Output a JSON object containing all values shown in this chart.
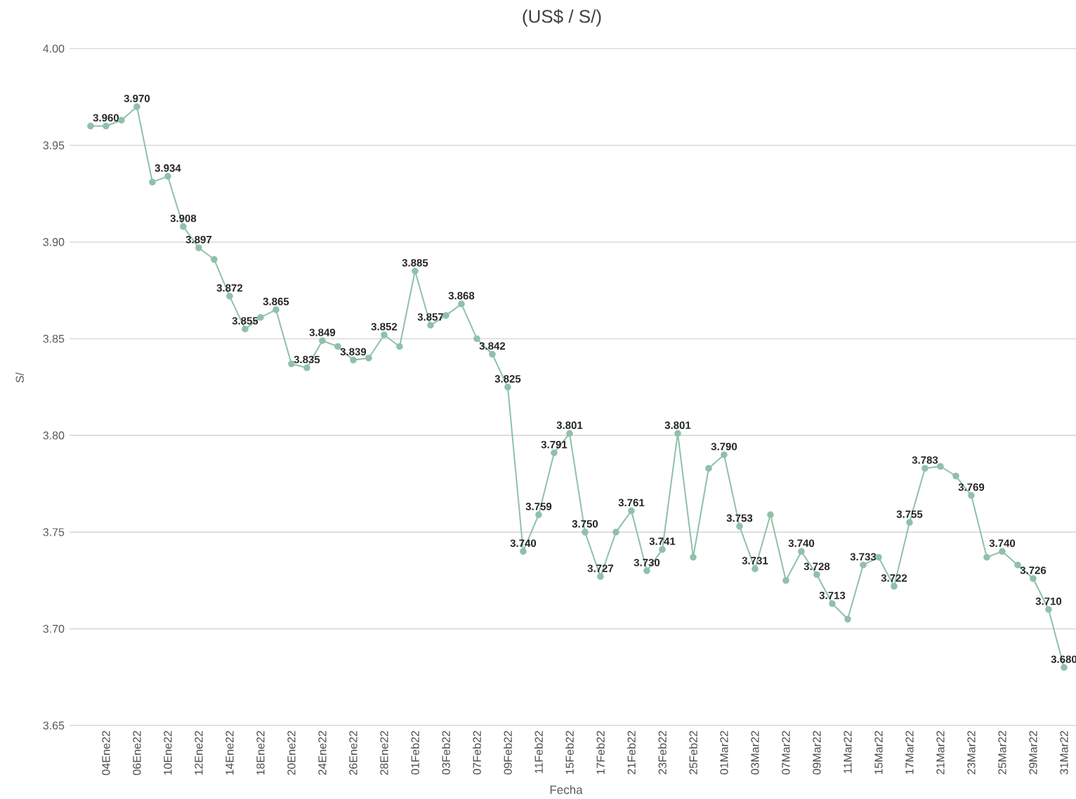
{
  "chart_data": {
    "type": "line",
    "title": "(US$ / S/)",
    "xlabel": "Fecha",
    "ylabel": "S/",
    "categories": [
      null,
      "04Ene22",
      null,
      "06Ene22",
      null,
      "10Ene22",
      null,
      "12Ene22",
      null,
      "14Ene22",
      null,
      "18Ene22",
      null,
      "20Ene22",
      null,
      "24Ene22",
      null,
      "26Ene22",
      null,
      "28Ene22",
      null,
      "01Feb22",
      null,
      "03Feb22",
      null,
      "07Feb22",
      null,
      "09Feb22",
      null,
      "11Feb22",
      null,
      "15Feb22",
      null,
      "17Feb22",
      null,
      "21Feb22",
      null,
      "23Feb22",
      null,
      "25Feb22",
      null,
      "01Mar22",
      null,
      "03Mar22",
      null,
      "07Mar22",
      null,
      "09Mar22",
      null,
      "11Mar22",
      null,
      "15Mar22",
      null,
      "17Mar22",
      null,
      "21Mar22",
      null,
      "23Mar22",
      null,
      "25Mar22",
      null,
      "29Mar22",
      null,
      "31Mar22"
    ],
    "series": [
      {
        "color": "#8fc1a9",
        "values": [
          3.96,
          3.96,
          3.963,
          3.97,
          3.931,
          3.934,
          3.908,
          3.897,
          3.891,
          3.872,
          3.855,
          3.861,
          3.865,
          3.837,
          3.835,
          3.849,
          3.846,
          3.839,
          3.84,
          3.852,
          3.846,
          3.885,
          3.857,
          3.862,
          3.868,
          3.85,
          3.842,
          3.825,
          3.74,
          3.759,
          3.791,
          3.801,
          3.75,
          3.727,
          3.75,
          3.761,
          3.73,
          3.741,
          3.801,
          3.737,
          3.783,
          3.79,
          3.753,
          3.731,
          3.759,
          3.725,
          3.74,
          3.728,
          3.713,
          3.705,
          3.733,
          3.737,
          3.722,
          3.755,
          3.783,
          3.784,
          3.779,
          3.769,
          3.737,
          3.74,
          3.733,
          3.726,
          3.71,
          3.68
        ],
        "value_labels": [
          null,
          "3.960",
          null,
          "3.970",
          null,
          "3.934",
          "3.908",
          "3.897",
          null,
          "3.872",
          "3.855",
          null,
          "3.865",
          null,
          "3.835",
          "3.849",
          null,
          "3.839",
          null,
          "3.852",
          null,
          "3.885",
          "3.857",
          null,
          "3.868",
          null,
          "3.842",
          "3.825",
          "3.740",
          "3.759",
          "3.791",
          "3.801",
          "3.750",
          "3.727",
          null,
          "3.761",
          "3.730",
          "3.741",
          "3.801",
          null,
          null,
          "3.790",
          "3.753",
          "3.731",
          null,
          null,
          "3.740",
          "3.728",
          "3.713",
          null,
          "3.733",
          null,
          "3.722",
          "3.755",
          "3.783",
          null,
          null,
          "3.769",
          null,
          "3.740",
          null,
          "3.726",
          "3.710",
          "3.680"
        ]
      }
    ],
    "ylim": [
      3.65,
      4.0
    ],
    "yticks": [
      {
        "value": 3.65,
        "label": "3.65"
      },
      {
        "value": 3.7,
        "label": "3.70"
      },
      {
        "value": 3.75,
        "label": "3.75"
      },
      {
        "value": 3.8,
        "label": "3.80"
      },
      {
        "value": 3.85,
        "label": "3.85"
      },
      {
        "value": 3.9,
        "label": "3.90"
      },
      {
        "value": 3.95,
        "label": "3.95"
      },
      {
        "value": 4.0,
        "label": "4.00"
      }
    ],
    "grid": "y",
    "marker": "circle"
  }
}
